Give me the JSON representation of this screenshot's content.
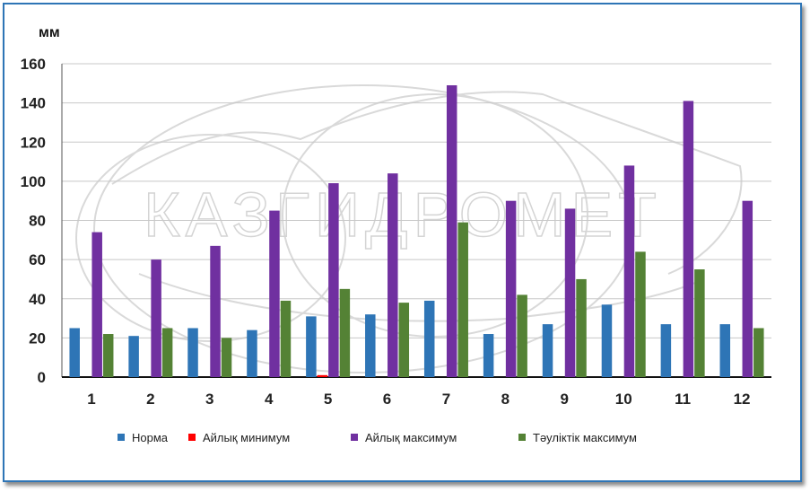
{
  "chart_data": {
    "type": "bar",
    "ylabel": "мм",
    "ylim": [
      0,
      160
    ],
    "yticks": [
      0,
      20,
      40,
      60,
      80,
      100,
      120,
      140,
      160
    ],
    "grid": true,
    "legend_position": "bottom",
    "categories": [
      "1",
      "2",
      "3",
      "4",
      "5",
      "6",
      "7",
      "8",
      "9",
      "10",
      "11",
      "12"
    ],
    "series": [
      {
        "name": "Норма",
        "color": "#2e75b6",
        "values": [
          25,
          21,
          25,
          24,
          31,
          32,
          39,
          22,
          27,
          37,
          27,
          27
        ]
      },
      {
        "name": "Айлық минимум",
        "color": "#ff0000",
        "values": [
          0,
          0,
          0,
          0,
          1,
          0,
          0,
          0,
          0,
          0,
          0,
          0
        ]
      },
      {
        "name": "Айлық максимум",
        "color": "#7030a0",
        "values": [
          74,
          60,
          67,
          85,
          99,
          104,
          149,
          90,
          86,
          108,
          141,
          90
        ]
      },
      {
        "name": "Тәуліктік максимум",
        "color": "#548235",
        "values": [
          22,
          25,
          20,
          39,
          45,
          38,
          79,
          42,
          50,
          64,
          55,
          25
        ]
      }
    ],
    "watermark": "КАЗГИДРОМЕТ"
  }
}
